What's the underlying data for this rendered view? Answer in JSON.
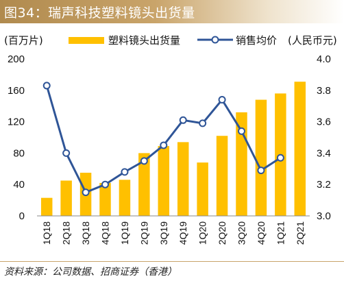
{
  "figure": {
    "title": "图34：瑞声科技塑料镜头出货量",
    "left_unit": "(百万片)",
    "right_unit": "(人民币元)",
    "source": "资料来源：公司数据、招商证券（香港）",
    "colors": {
      "bar": "#ffc000",
      "line": "#2f5597",
      "title_band": "#b08a4e",
      "marker_fill": "#ffffff"
    }
  },
  "chart_data": {
    "type": "bar",
    "categories": [
      "1Q18",
      "2Q18",
      "3Q18",
      "4Q18",
      "1Q19",
      "2Q19",
      "3Q19",
      "4Q19",
      "1Q20",
      "2Q20",
      "3Q20",
      "4Q20",
      "1Q21",
      "2Q21"
    ],
    "series": [
      {
        "name": "塑料镜头出货量",
        "type": "bar",
        "axis": "left",
        "values": [
          23,
          45,
          55,
          42,
          46,
          80,
          89,
          94,
          68,
          102,
          132,
          148,
          156,
          171
        ]
      },
      {
        "name": "销售均价",
        "type": "line",
        "axis": "right",
        "values": [
          3.83,
          3.4,
          3.15,
          3.2,
          3.28,
          3.35,
          3.45,
          3.61,
          3.59,
          3.74,
          3.54,
          3.29,
          3.37,
          null
        ]
      }
    ],
    "y_left": {
      "min": 0,
      "max": 200,
      "ticks": [
        "0",
        "40",
        "80",
        "120",
        "160",
        "200"
      ]
    },
    "y_right": {
      "min": 3.0,
      "max": 4.0,
      "ticks": [
        "3.0",
        "3.2",
        "3.4",
        "3.6",
        "3.8",
        "4.0"
      ]
    },
    "grid": false,
    "legend_position": "top"
  }
}
